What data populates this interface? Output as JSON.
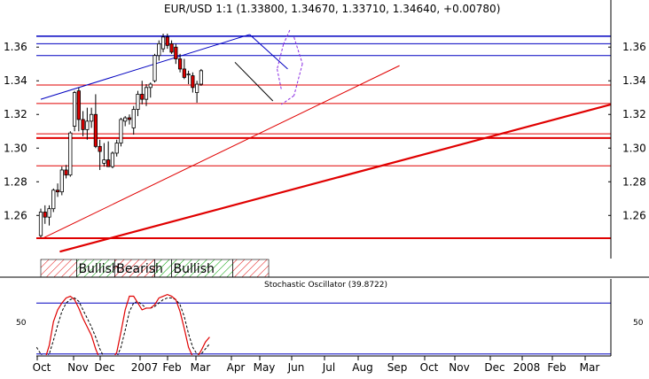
{
  "chart_data": {
    "type": "candlestick",
    "title": "EUR/USD 1:1 (1.33800, 1.34670, 1.33710, 1.34640, +0.00780)",
    "oscillator": {
      "title": "Stochastic Oscillator (39.8722)",
      "y_tick": "50",
      "upper_level": 80,
      "lower_level": 20,
      "k_color": "#e00000",
      "d_color": "#000000"
    },
    "x_labels": [
      "Oct",
      "Nov",
      "Dec",
      "2007",
      "Feb",
      "Mar",
      "Apr",
      "May",
      "Jun",
      "Jul",
      "Aug",
      "Sep",
      "Oct",
      "Nov",
      "Dec",
      "2008",
      "Feb",
      "Mar"
    ],
    "y_ticks": [
      "1.26",
      "1.28",
      "1.30",
      "1.32",
      "1.34",
      "1.36"
    ],
    "y_values": [
      1.26,
      1.28,
      1.3,
      1.32,
      1.34,
      1.36
    ],
    "ylim": [
      1.237,
      1.378
    ],
    "colors": {
      "up": "#ffffff",
      "down": "#e00000",
      "blue_line": "#0000c0",
      "red_line": "#e00000",
      "hatch_red": "#e00000",
      "hatch_green": "#00a000"
    },
    "candles": [
      {
        "o": 1.248,
        "h": 1.264,
        "l": 1.247,
        "c": 1.262
      },
      {
        "o": 1.262,
        "h": 1.266,
        "l": 1.255,
        "c": 1.259
      },
      {
        "o": 1.259,
        "h": 1.266,
        "l": 1.254,
        "c": 1.264
      },
      {
        "o": 1.264,
        "h": 1.276,
        "l": 1.262,
        "c": 1.275
      },
      {
        "o": 1.275,
        "h": 1.279,
        "l": 1.271,
        "c": 1.274
      },
      {
        "o": 1.274,
        "h": 1.289,
        "l": 1.272,
        "c": 1.287
      },
      {
        "o": 1.287,
        "h": 1.29,
        "l": 1.282,
        "c": 1.284
      },
      {
        "o": 1.284,
        "h": 1.31,
        "l": 1.283,
        "c": 1.309
      },
      {
        "o": 1.313,
        "h": 1.334,
        "l": 1.31,
        "c": 1.333
      },
      {
        "o": 1.334,
        "h": 1.336,
        "l": 1.31,
        "c": 1.317
      },
      {
        "o": 1.317,
        "h": 1.322,
        "l": 1.307,
        "c": 1.311
      },
      {
        "o": 1.311,
        "h": 1.324,
        "l": 1.305,
        "c": 1.316
      },
      {
        "o": 1.316,
        "h": 1.324,
        "l": 1.312,
        "c": 1.32
      },
      {
        "o": 1.32,
        "h": 1.332,
        "l": 1.3,
        "c": 1.301
      },
      {
        "o": 1.301,
        "h": 1.305,
        "l": 1.287,
        "c": 1.298
      },
      {
        "o": 1.291,
        "h": 1.303,
        "l": 1.289,
        "c": 1.293
      },
      {
        "o": 1.293,
        "h": 1.304,
        "l": 1.289,
        "c": 1.289
      },
      {
        "o": 1.289,
        "h": 1.298,
        "l": 1.288,
        "c": 1.297
      },
      {
        "o": 1.297,
        "h": 1.305,
        "l": 1.295,
        "c": 1.303
      },
      {
        "o": 1.303,
        "h": 1.318,
        "l": 1.301,
        "c": 1.317
      },
      {
        "o": 1.316,
        "h": 1.319,
        "l": 1.313,
        "c": 1.318
      },
      {
        "o": 1.318,
        "h": 1.32,
        "l": 1.314,
        "c": 1.317
      },
      {
        "o": 1.312,
        "h": 1.325,
        "l": 1.308,
        "c": 1.323
      },
      {
        "o": 1.323,
        "h": 1.334,
        "l": 1.319,
        "c": 1.332
      },
      {
        "o": 1.332,
        "h": 1.34,
        "l": 1.326,
        "c": 1.329
      },
      {
        "o": 1.329,
        "h": 1.338,
        "l": 1.325,
        "c": 1.336
      },
      {
        "o": 1.336,
        "h": 1.339,
        "l": 1.33,
        "c": 1.338
      },
      {
        "o": 1.34,
        "h": 1.356,
        "l": 1.339,
        "c": 1.355
      },
      {
        "o": 1.355,
        "h": 1.364,
        "l": 1.352,
        "c": 1.362
      },
      {
        "o": 1.359,
        "h": 1.368,
        "l": 1.357,
        "c": 1.366
      },
      {
        "o": 1.366,
        "h": 1.368,
        "l": 1.359,
        "c": 1.361
      },
      {
        "o": 1.362,
        "h": 1.364,
        "l": 1.356,
        "c": 1.357
      },
      {
        "o": 1.36,
        "h": 1.362,
        "l": 1.35,
        "c": 1.353
      },
      {
        "o": 1.353,
        "h": 1.356,
        "l": 1.345,
        "c": 1.347
      },
      {
        "o": 1.347,
        "h": 1.353,
        "l": 1.341,
        "c": 1.342
      },
      {
        "o": 1.344,
        "h": 1.346,
        "l": 1.338,
        "c": 1.344
      },
      {
        "o": 1.343,
        "h": 1.345,
        "l": 1.333,
        "c": 1.336
      },
      {
        "o": 1.333,
        "h": 1.34,
        "l": 1.327,
        "c": 1.338
      },
      {
        "o": 1.338,
        "h": 1.347,
        "l": 1.337,
        "c": 1.346
      }
    ],
    "horizontal_lines": [
      {
        "y": 1.3665,
        "color": "blue",
        "width": 1.5
      },
      {
        "y": 1.362,
        "color": "blue",
        "width": 1
      },
      {
        "y": 1.355,
        "color": "blue",
        "width": 1
      },
      {
        "y": 1.3375,
        "color": "red",
        "width": 1
      },
      {
        "y": 1.3265,
        "color": "red",
        "width": 1
      },
      {
        "y": 1.3085,
        "color": "red",
        "width": 1
      },
      {
        "y": 1.306,
        "color": "red",
        "width": 2
      },
      {
        "y": 1.2895,
        "color": "red",
        "width": 1
      },
      {
        "y": 1.2465,
        "color": "red",
        "width": 2
      }
    ],
    "trend_lines": [
      {
        "x1": 0,
        "y1": 1.329,
        "x2": 49.5,
        "y2": 1.3675,
        "color": "blue",
        "width": 1
      },
      {
        "x1": 0.5,
        "y1": 1.2465,
        "x2": 85,
        "y2": 1.349,
        "color": "red",
        "width": 1
      },
      {
        "x1": 4.5,
        "y1": 1.2385,
        "x2": 180,
        "y2": 1.356,
        "color": "red",
        "width": 2.2
      },
      {
        "x1": 49.5,
        "y1": 1.3675,
        "x2": 58.5,
        "y2": 1.347,
        "color": "blue",
        "width": 1
      },
      {
        "x1": 46,
        "y1": 1.351,
        "x2": 55,
        "y2": 1.328,
        "color": "black",
        "width": 1
      }
    ],
    "regimes": [
      {
        "label": "",
        "start": 0,
        "end": 8.5,
        "kind": "bear"
      },
      {
        "label": "Bullish",
        "start": 8.5,
        "end": 17.5,
        "kind": "bull"
      },
      {
        "label": "Bearish",
        "start": 17.5,
        "end": 27,
        "kind": "bear"
      },
      {
        "label": "",
        "start": 27,
        "end": 31,
        "kind": "bull"
      },
      {
        "label": "Bullish",
        "start": 31,
        "end": 45.5,
        "kind": "bull"
      },
      {
        "label": "",
        "start": 45.5,
        "end": 54,
        "kind": "bear"
      }
    ],
    "stoch_k": [
      17,
      10,
      14,
      30,
      58,
      72,
      80,
      86,
      88,
      84,
      74,
      62,
      52,
      42,
      26,
      14,
      10,
      12,
      14,
      22,
      46,
      72,
      88,
      88,
      80,
      72,
      74,
      74,
      78,
      86,
      88,
      90,
      88,
      84,
      70,
      50,
      28,
      17,
      16,
      24,
      34,
      40
    ],
    "stoch_d": [
      28,
      20,
      14,
      20,
      36,
      54,
      70,
      80,
      84,
      86,
      82,
      72,
      62,
      52,
      40,
      26,
      16,
      12,
      12,
      16,
      28,
      48,
      70,
      80,
      82,
      78,
      74,
      74,
      76,
      80,
      84,
      86,
      86,
      84,
      78,
      64,
      44,
      28,
      20,
      20,
      26,
      32
    ]
  }
}
